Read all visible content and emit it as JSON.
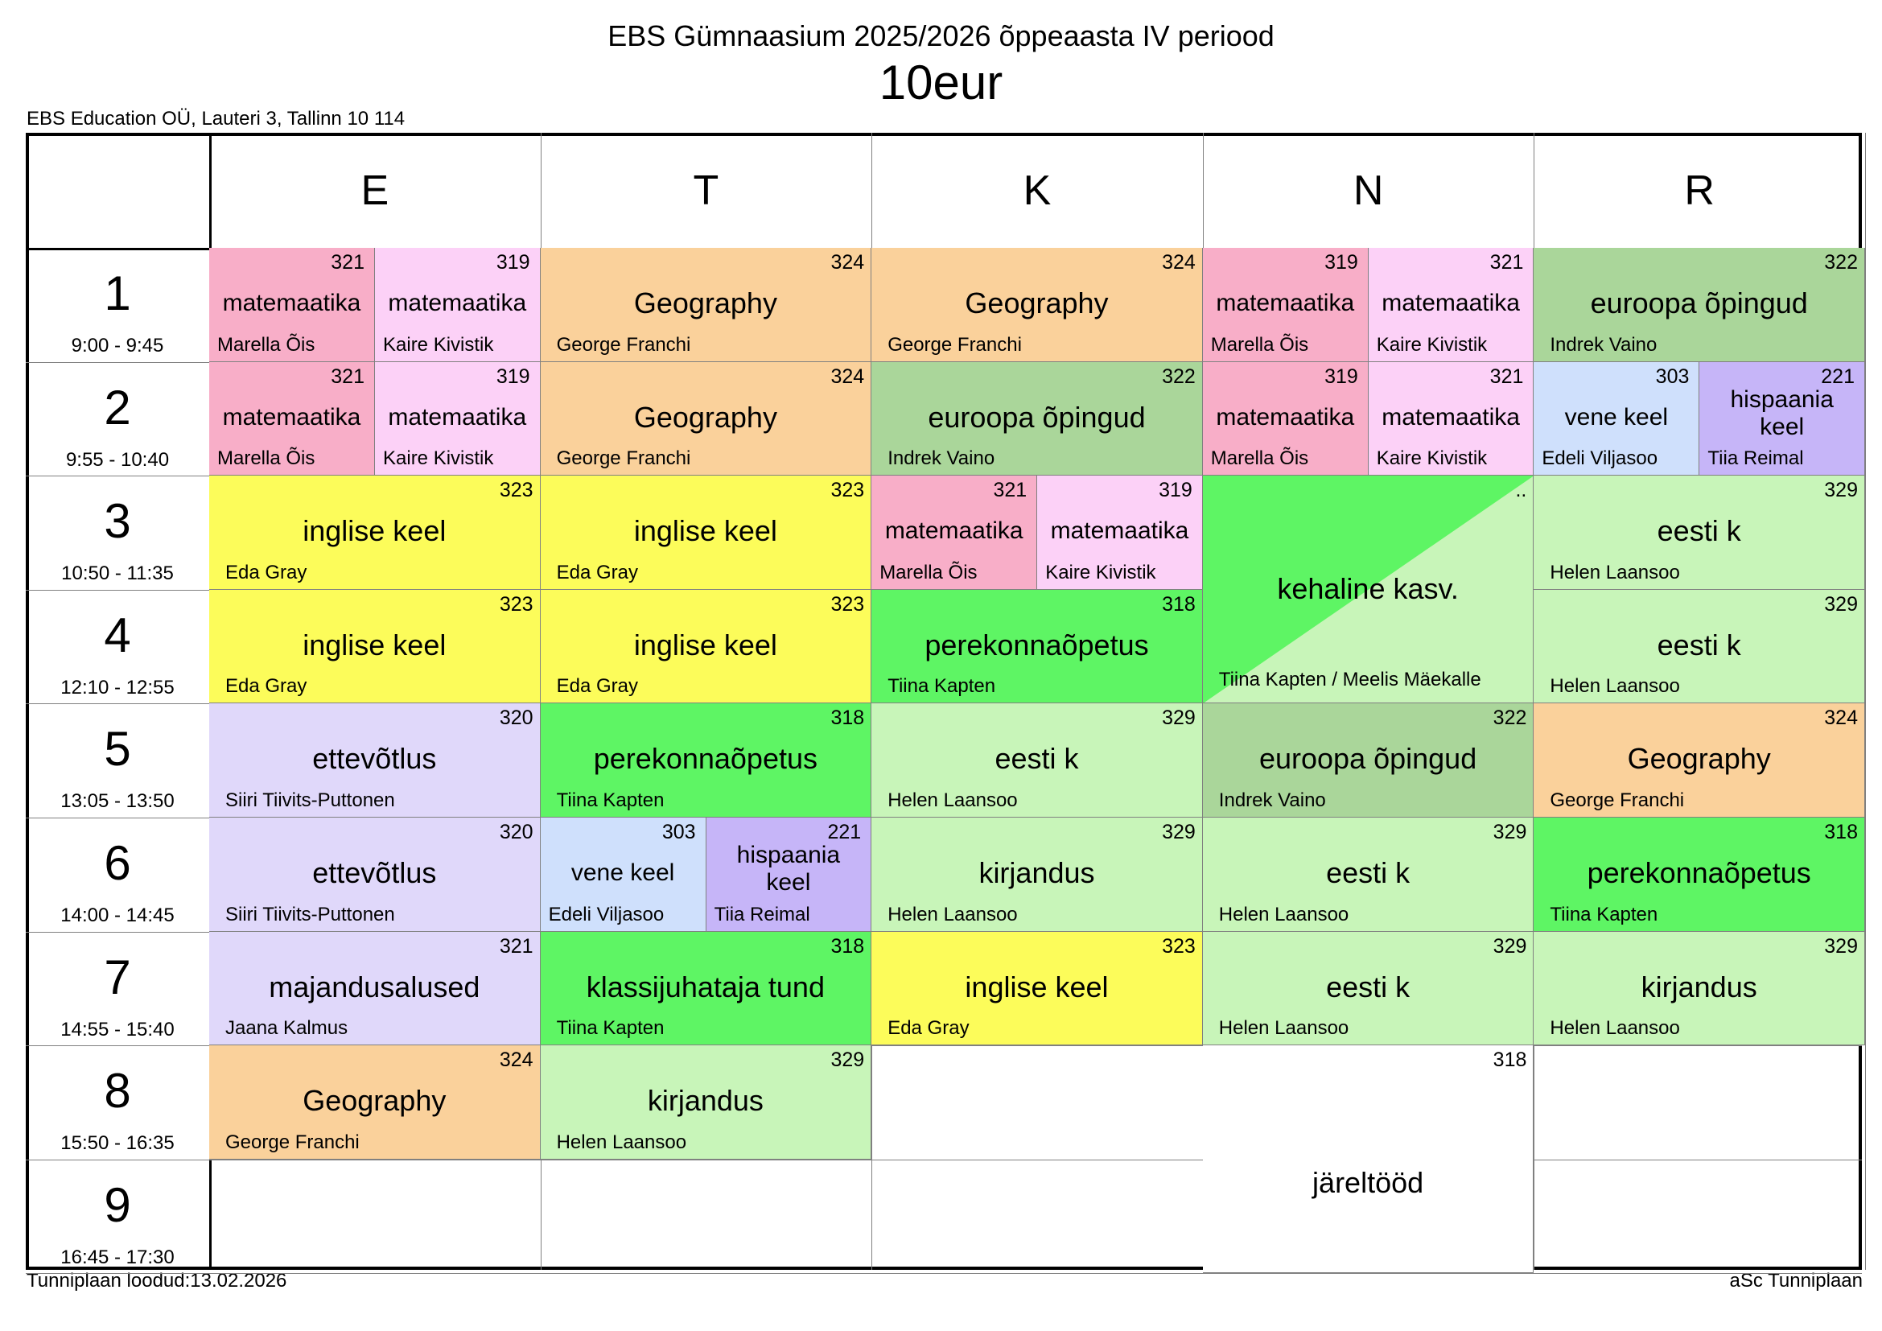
{
  "header": {
    "title": "EBS Gümnaasium 2025/2026 õppeaasta IV periood",
    "subtitle": "10eur",
    "organization": "EBS Education OÜ, Lauteri 3, Tallinn 10 114"
  },
  "footer": {
    "created": "Tunniplaan loodud:13.02.2026",
    "software": "aSc Tunniplaan"
  },
  "days": [
    "E",
    "T",
    "K",
    "N",
    "R"
  ],
  "periods": [
    {
      "num": "1",
      "time": "9:00 - 9:45"
    },
    {
      "num": "2",
      "time": "9:55 - 10:40"
    },
    {
      "num": "3",
      "time": "10:50 - 11:35"
    },
    {
      "num": "4",
      "time": "12:10 - 12:55"
    },
    {
      "num": "5",
      "time": "13:05 - 13:50"
    },
    {
      "num": "6",
      "time": "14:00 - 14:45"
    },
    {
      "num": "7",
      "time": "14:55 - 15:40"
    },
    {
      "num": "8",
      "time": "15:50 - 16:35"
    },
    {
      "num": "9",
      "time": "16:45 - 17:30"
    }
  ],
  "colors": {
    "math_pink": "#f8aec8",
    "math_lightpink": "#fcd1f7",
    "geography": "#fad19b",
    "europe": "#aad69a",
    "english": "#fcfc5a",
    "pe_green": "#5ef564",
    "estonian": "#c8f5b9",
    "business": "#e0d8fa",
    "russian": "#cfe0fc",
    "spanish": "#c6b5f8",
    "white": "#ffffff"
  },
  "lessons": [
    {
      "day": 0,
      "p": 0,
      "span": 1,
      "half": "L",
      "subject": "matemaatika",
      "room": "321",
      "teacher": "Marella Õis",
      "color": "math_pink"
    },
    {
      "day": 0,
      "p": 0,
      "span": 1,
      "half": "R",
      "subject": "matemaatika",
      "room": "319",
      "teacher": "Kaire Kivistik",
      "color": "math_lightpink"
    },
    {
      "day": 1,
      "p": 0,
      "span": 1,
      "subject": "Geography",
      "room": "324",
      "teacher": "George Franchi",
      "color": "geography"
    },
    {
      "day": 2,
      "p": 0,
      "span": 1,
      "subject": "Geography",
      "room": "324",
      "teacher": "George Franchi",
      "color": "geography"
    },
    {
      "day": 3,
      "p": 0,
      "span": 1,
      "half": "L",
      "subject": "matemaatika",
      "room": "319",
      "teacher": "Marella Õis",
      "color": "math_pink"
    },
    {
      "day": 3,
      "p": 0,
      "span": 1,
      "half": "R",
      "subject": "matemaatika",
      "room": "321",
      "teacher": "Kaire Kivistik",
      "color": "math_lightpink"
    },
    {
      "day": 4,
      "p": 0,
      "span": 1,
      "subject": "euroopa õpingud",
      "room": "322",
      "teacher": "Indrek Vaino",
      "color": "europe"
    },
    {
      "day": 0,
      "p": 1,
      "span": 1,
      "half": "L",
      "subject": "matemaatika",
      "room": "321",
      "teacher": "Marella Õis",
      "color": "math_pink"
    },
    {
      "day": 0,
      "p": 1,
      "span": 1,
      "half": "R",
      "subject": "matemaatika",
      "room": "319",
      "teacher": "Kaire Kivistik",
      "color": "math_lightpink"
    },
    {
      "day": 1,
      "p": 1,
      "span": 1,
      "subject": "Geography",
      "room": "324",
      "teacher": "George Franchi",
      "color": "geography"
    },
    {
      "day": 2,
      "p": 1,
      "span": 1,
      "subject": "euroopa õpingud",
      "room": "322",
      "teacher": "Indrek Vaino",
      "color": "europe"
    },
    {
      "day": 3,
      "p": 1,
      "span": 1,
      "half": "L",
      "subject": "matemaatika",
      "room": "319",
      "teacher": "Marella Õis",
      "color": "math_pink"
    },
    {
      "day": 3,
      "p": 1,
      "span": 1,
      "half": "R",
      "subject": "matemaatika",
      "room": "321",
      "teacher": "Kaire Kivistik",
      "color": "math_lightpink"
    },
    {
      "day": 4,
      "p": 1,
      "span": 1,
      "half": "L",
      "subject": "vene keel",
      "room": "303",
      "teacher": "Edeli Viljasoo",
      "color": "russian"
    },
    {
      "day": 4,
      "p": 1,
      "span": 1,
      "half": "R",
      "subject": "hispaania keel",
      "room": "221",
      "teacher": "Tiia Reimal",
      "color": "spanish",
      "wrap": true
    },
    {
      "day": 0,
      "p": 2,
      "span": 1,
      "subject": "inglise keel",
      "room": "323",
      "teacher": "Eda Gray",
      "color": "english"
    },
    {
      "day": 1,
      "p": 2,
      "span": 1,
      "subject": "inglise keel",
      "room": "323",
      "teacher": "Eda Gray",
      "color": "english"
    },
    {
      "day": 2,
      "p": 2,
      "span": 1,
      "half": "L",
      "subject": "matemaatika",
      "room": "321",
      "teacher": "Marella Õis",
      "color": "math_pink"
    },
    {
      "day": 2,
      "p": 2,
      "span": 1,
      "half": "R",
      "subject": "matemaatika",
      "room": "319",
      "teacher": "Kaire Kivistik",
      "color": "math_lightpink"
    },
    {
      "day": 3,
      "p": 2,
      "span": 2,
      "subject": "kehaline kasv.",
      "room": "..",
      "teacher": "Tiina Kapten / Meelis Mäekalle",
      "color": "estonian",
      "diagonal": "pe_green"
    },
    {
      "day": 4,
      "p": 2,
      "span": 1,
      "subject": "eesti k",
      "room": "329",
      "teacher": "Helen Laansoo",
      "color": "estonian"
    },
    {
      "day": 0,
      "p": 3,
      "span": 1,
      "subject": "inglise keel",
      "room": "323",
      "teacher": "Eda Gray",
      "color": "english"
    },
    {
      "day": 1,
      "p": 3,
      "span": 1,
      "subject": "inglise keel",
      "room": "323",
      "teacher": "Eda Gray",
      "color": "english"
    },
    {
      "day": 2,
      "p": 3,
      "span": 1,
      "subject": "perekonnaõpetus",
      "room": "318",
      "teacher": "Tiina Kapten",
      "color": "pe_green"
    },
    {
      "day": 4,
      "p": 3,
      "span": 1,
      "subject": "eesti k",
      "room": "329",
      "teacher": "Helen Laansoo",
      "color": "estonian"
    },
    {
      "day": 0,
      "p": 4,
      "span": 1,
      "subject": "ettevõtlus",
      "room": "320",
      "teacher": "Siiri Tiivits-Puttonen",
      "color": "business"
    },
    {
      "day": 1,
      "p": 4,
      "span": 1,
      "subject": "perekonnaõpetus",
      "room": "318",
      "teacher": "Tiina Kapten",
      "color": "pe_green"
    },
    {
      "day": 2,
      "p": 4,
      "span": 1,
      "subject": "eesti k",
      "room": "329",
      "teacher": "Helen Laansoo",
      "color": "estonian"
    },
    {
      "day": 3,
      "p": 4,
      "span": 1,
      "subject": "euroopa õpingud",
      "room": "322",
      "teacher": "Indrek Vaino",
      "color": "europe"
    },
    {
      "day": 4,
      "p": 4,
      "span": 1,
      "subject": "Geography",
      "room": "324",
      "teacher": "George Franchi",
      "color": "geography"
    },
    {
      "day": 0,
      "p": 5,
      "span": 1,
      "subject": "ettevõtlus",
      "room": "320",
      "teacher": "Siiri Tiivits-Puttonen",
      "color": "business"
    },
    {
      "day": 1,
      "p": 5,
      "span": 1,
      "half": "L",
      "subject": "vene keel",
      "room": "303",
      "teacher": "Edeli Viljasoo",
      "color": "russian"
    },
    {
      "day": 1,
      "p": 5,
      "span": 1,
      "half": "R",
      "subject": "hispaania keel",
      "room": "221",
      "teacher": "Tiia Reimal",
      "color": "spanish",
      "wrap": true
    },
    {
      "day": 2,
      "p": 5,
      "span": 1,
      "subject": "kirjandus",
      "room": "329",
      "teacher": "Helen Laansoo",
      "color": "estonian"
    },
    {
      "day": 3,
      "p": 5,
      "span": 1,
      "subject": "eesti k",
      "room": "329",
      "teacher": "Helen Laansoo",
      "color": "estonian"
    },
    {
      "day": 4,
      "p": 5,
      "span": 1,
      "subject": "perekonnaõpetus",
      "room": "318",
      "teacher": "Tiina Kapten",
      "color": "pe_green"
    },
    {
      "day": 0,
      "p": 6,
      "span": 1,
      "subject": "majandusalused",
      "room": "321",
      "teacher": "Jaana Kalmus",
      "color": "business"
    },
    {
      "day": 1,
      "p": 6,
      "span": 1,
      "subject": "klassijuhataja tund",
      "room": "318",
      "teacher": "Tiina Kapten",
      "color": "pe_green"
    },
    {
      "day": 2,
      "p": 6,
      "span": 1,
      "subject": "inglise keel",
      "room": "323",
      "teacher": "Eda Gray",
      "color": "english"
    },
    {
      "day": 3,
      "p": 6,
      "span": 1,
      "subject": "eesti k",
      "room": "329",
      "teacher": "Helen Laansoo",
      "color": "estonian"
    },
    {
      "day": 4,
      "p": 6,
      "span": 1,
      "subject": "kirjandus",
      "room": "329",
      "teacher": "Helen Laansoo",
      "color": "estonian"
    },
    {
      "day": 0,
      "p": 7,
      "span": 1,
      "subject": "Geography",
      "room": "324",
      "teacher": "George Franchi",
      "color": "geography"
    },
    {
      "day": 1,
      "p": 7,
      "span": 1,
      "subject": "kirjandus",
      "room": "329",
      "teacher": "Helen Laansoo",
      "color": "estonian"
    },
    {
      "day": 3,
      "p": 7,
      "span": 2,
      "subject": "järeltööd",
      "room": "318",
      "teacher": "",
      "color": "white"
    }
  ]
}
